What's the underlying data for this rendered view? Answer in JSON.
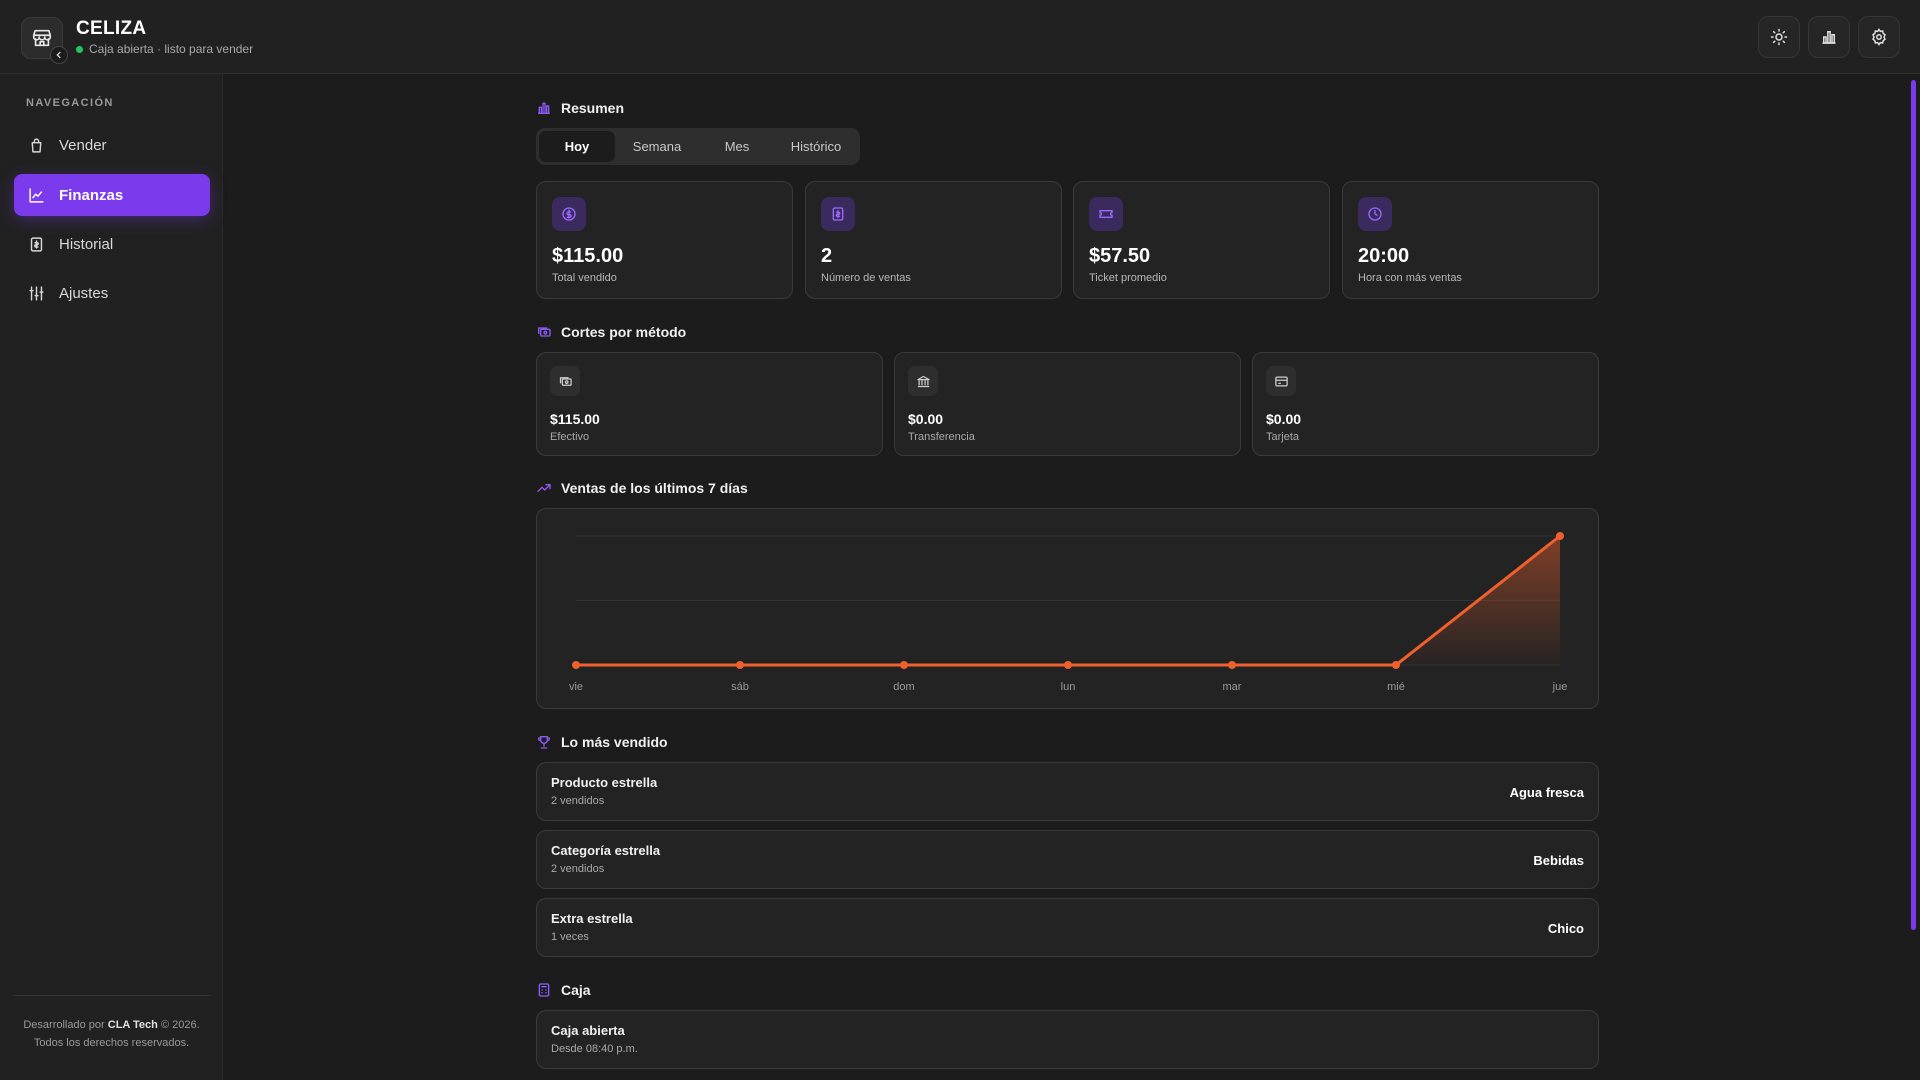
{
  "header": {
    "title": "CELIZA",
    "status": "Caja abierta · listo para vender",
    "logo_icon": "store-icon",
    "buttons": [
      "sun-icon",
      "chart-icon",
      "gear-icon"
    ]
  },
  "sidebar": {
    "section_label": "NAVEGACIÓN",
    "items": [
      {
        "label": "Vender",
        "icon": "shopping-bag-icon"
      },
      {
        "label": "Finanzas",
        "icon": "chart-line-icon"
      },
      {
        "label": "Historial",
        "icon": "receipt-icon"
      },
      {
        "label": "Ajustes",
        "icon": "sliders-icon"
      }
    ],
    "footer_prefix": "Desarrollado por",
    "footer_brand": "CLA Tech",
    "footer_year": "© 2026.",
    "footer_line2": "Todos los derechos reservados."
  },
  "resumen": {
    "title": "Resumen",
    "tabs": [
      "Hoy",
      "Semana",
      "Mes",
      "Histórico"
    ],
    "active_tab": "Hoy",
    "stats": [
      {
        "value": "$115.00",
        "label": "Total vendido",
        "icon": "dollar-icon"
      },
      {
        "value": "2",
        "label": "Número de ventas",
        "icon": "receipt-icon"
      },
      {
        "value": "$57.50",
        "label": "Ticket promedio",
        "icon": "ticket-icon"
      },
      {
        "value": "20:00",
        "label": "Hora con más ventas",
        "icon": "clock-icon"
      }
    ]
  },
  "cortes": {
    "title": "Cortes por método",
    "methods": [
      {
        "value": "$115.00",
        "label": "Efectivo",
        "icon": "cash-icon"
      },
      {
        "value": "$0.00",
        "label": "Transferencia",
        "icon": "bank-icon"
      },
      {
        "value": "$0.00",
        "label": "Tarjeta",
        "icon": "card-icon"
      }
    ]
  },
  "ventas_chart": {
    "title": "Ventas de los últimos 7 días"
  },
  "chart_data": {
    "type": "area",
    "categories": [
      "vie",
      "sáb",
      "dom",
      "lun",
      "mar",
      "mié",
      "jue"
    ],
    "values": [
      0,
      0,
      0,
      0,
      0,
      0,
      115
    ],
    "ylim": [
      0,
      115
    ],
    "grid": true,
    "color": "#f0602d"
  },
  "top": {
    "title": "Lo más vendido",
    "rows": [
      {
        "title": "Producto estrella",
        "sub": "2 vendidos",
        "value": "Agua fresca"
      },
      {
        "title": "Categoría estrella",
        "sub": "2 vendidos",
        "value": "Bebidas"
      },
      {
        "title": "Extra estrella",
        "sub": "1 veces",
        "value": "Chico"
      }
    ]
  },
  "caja": {
    "title": "Caja",
    "status_title": "Caja abierta",
    "status_sub": "Desde 08:40 p.m."
  },
  "colors": {
    "accent": "#7c3aed",
    "line": "#f0602d",
    "status_green": "#22c55e"
  }
}
